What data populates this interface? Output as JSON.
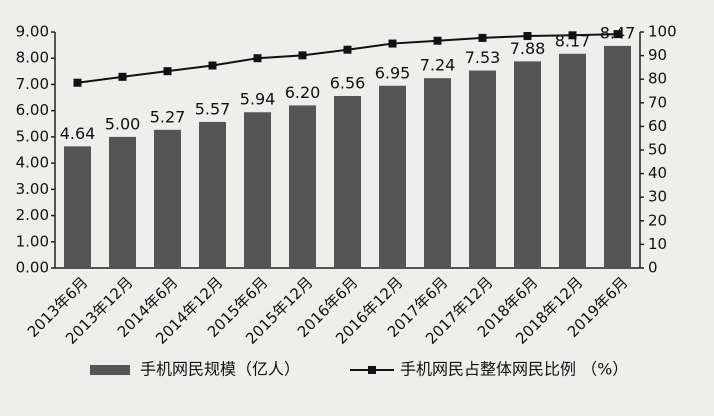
{
  "chart_data": {
    "type": "bar_line",
    "categories": [
      "2013年6月",
      "2013年12月",
      "2014年6月",
      "2014年12月",
      "2015年6月",
      "2015年12月",
      "2016年6月",
      "2016年12月",
      "2017年6月",
      "2017年12月",
      "2018年6月",
      "2018年12月",
      "2019年6月"
    ],
    "series": [
      {
        "name": "手机网民规模（亿人）",
        "color": "#555555",
        "type": "bar",
        "values": [
          4.64,
          5.0,
          5.27,
          5.57,
          5.94,
          6.2,
          6.56,
          6.95,
          7.24,
          7.53,
          7.88,
          8.17,
          8.47
        ],
        "value_labels": [
          "4.64",
          "5.00",
          "5.27",
          "5.57",
          "5.94",
          "6.20",
          "6.56",
          "6.95",
          "7.24",
          "7.53",
          "7.88",
          "8.17",
          "8.47"
        ]
      },
      {
        "name": "手机网民占整体网民比例 （%）",
        "color": "#111111",
        "type": "line",
        "axis": "y2",
        "values": [
          78.5,
          81.0,
          83.4,
          85.8,
          88.9,
          90.1,
          92.5,
          95.1,
          96.3,
          97.5,
          98.3,
          98.6,
          99.1
        ]
      }
    ],
    "ylim": [
      0,
      9
    ],
    "yticks": [
      {
        "value": 0,
        "label": "0.00"
      },
      {
        "value": 1,
        "label": "1.00"
      },
      {
        "value": 2,
        "label": "2.00"
      },
      {
        "value": 3,
        "label": "3.00"
      },
      {
        "value": 4,
        "label": "4.00"
      },
      {
        "value": 5,
        "label": "5.00"
      },
      {
        "value": 6,
        "label": "6.00"
      },
      {
        "value": 7,
        "label": "7.00"
      },
      {
        "value": 8,
        "label": "8.00"
      },
      {
        "value": 9,
        "label": "9.00"
      }
    ],
    "y2lim": [
      0,
      100
    ],
    "y2ticks": [
      0,
      10,
      20,
      30,
      40,
      50,
      60,
      70,
      80,
      90,
      100
    ],
    "grid": false
  }
}
